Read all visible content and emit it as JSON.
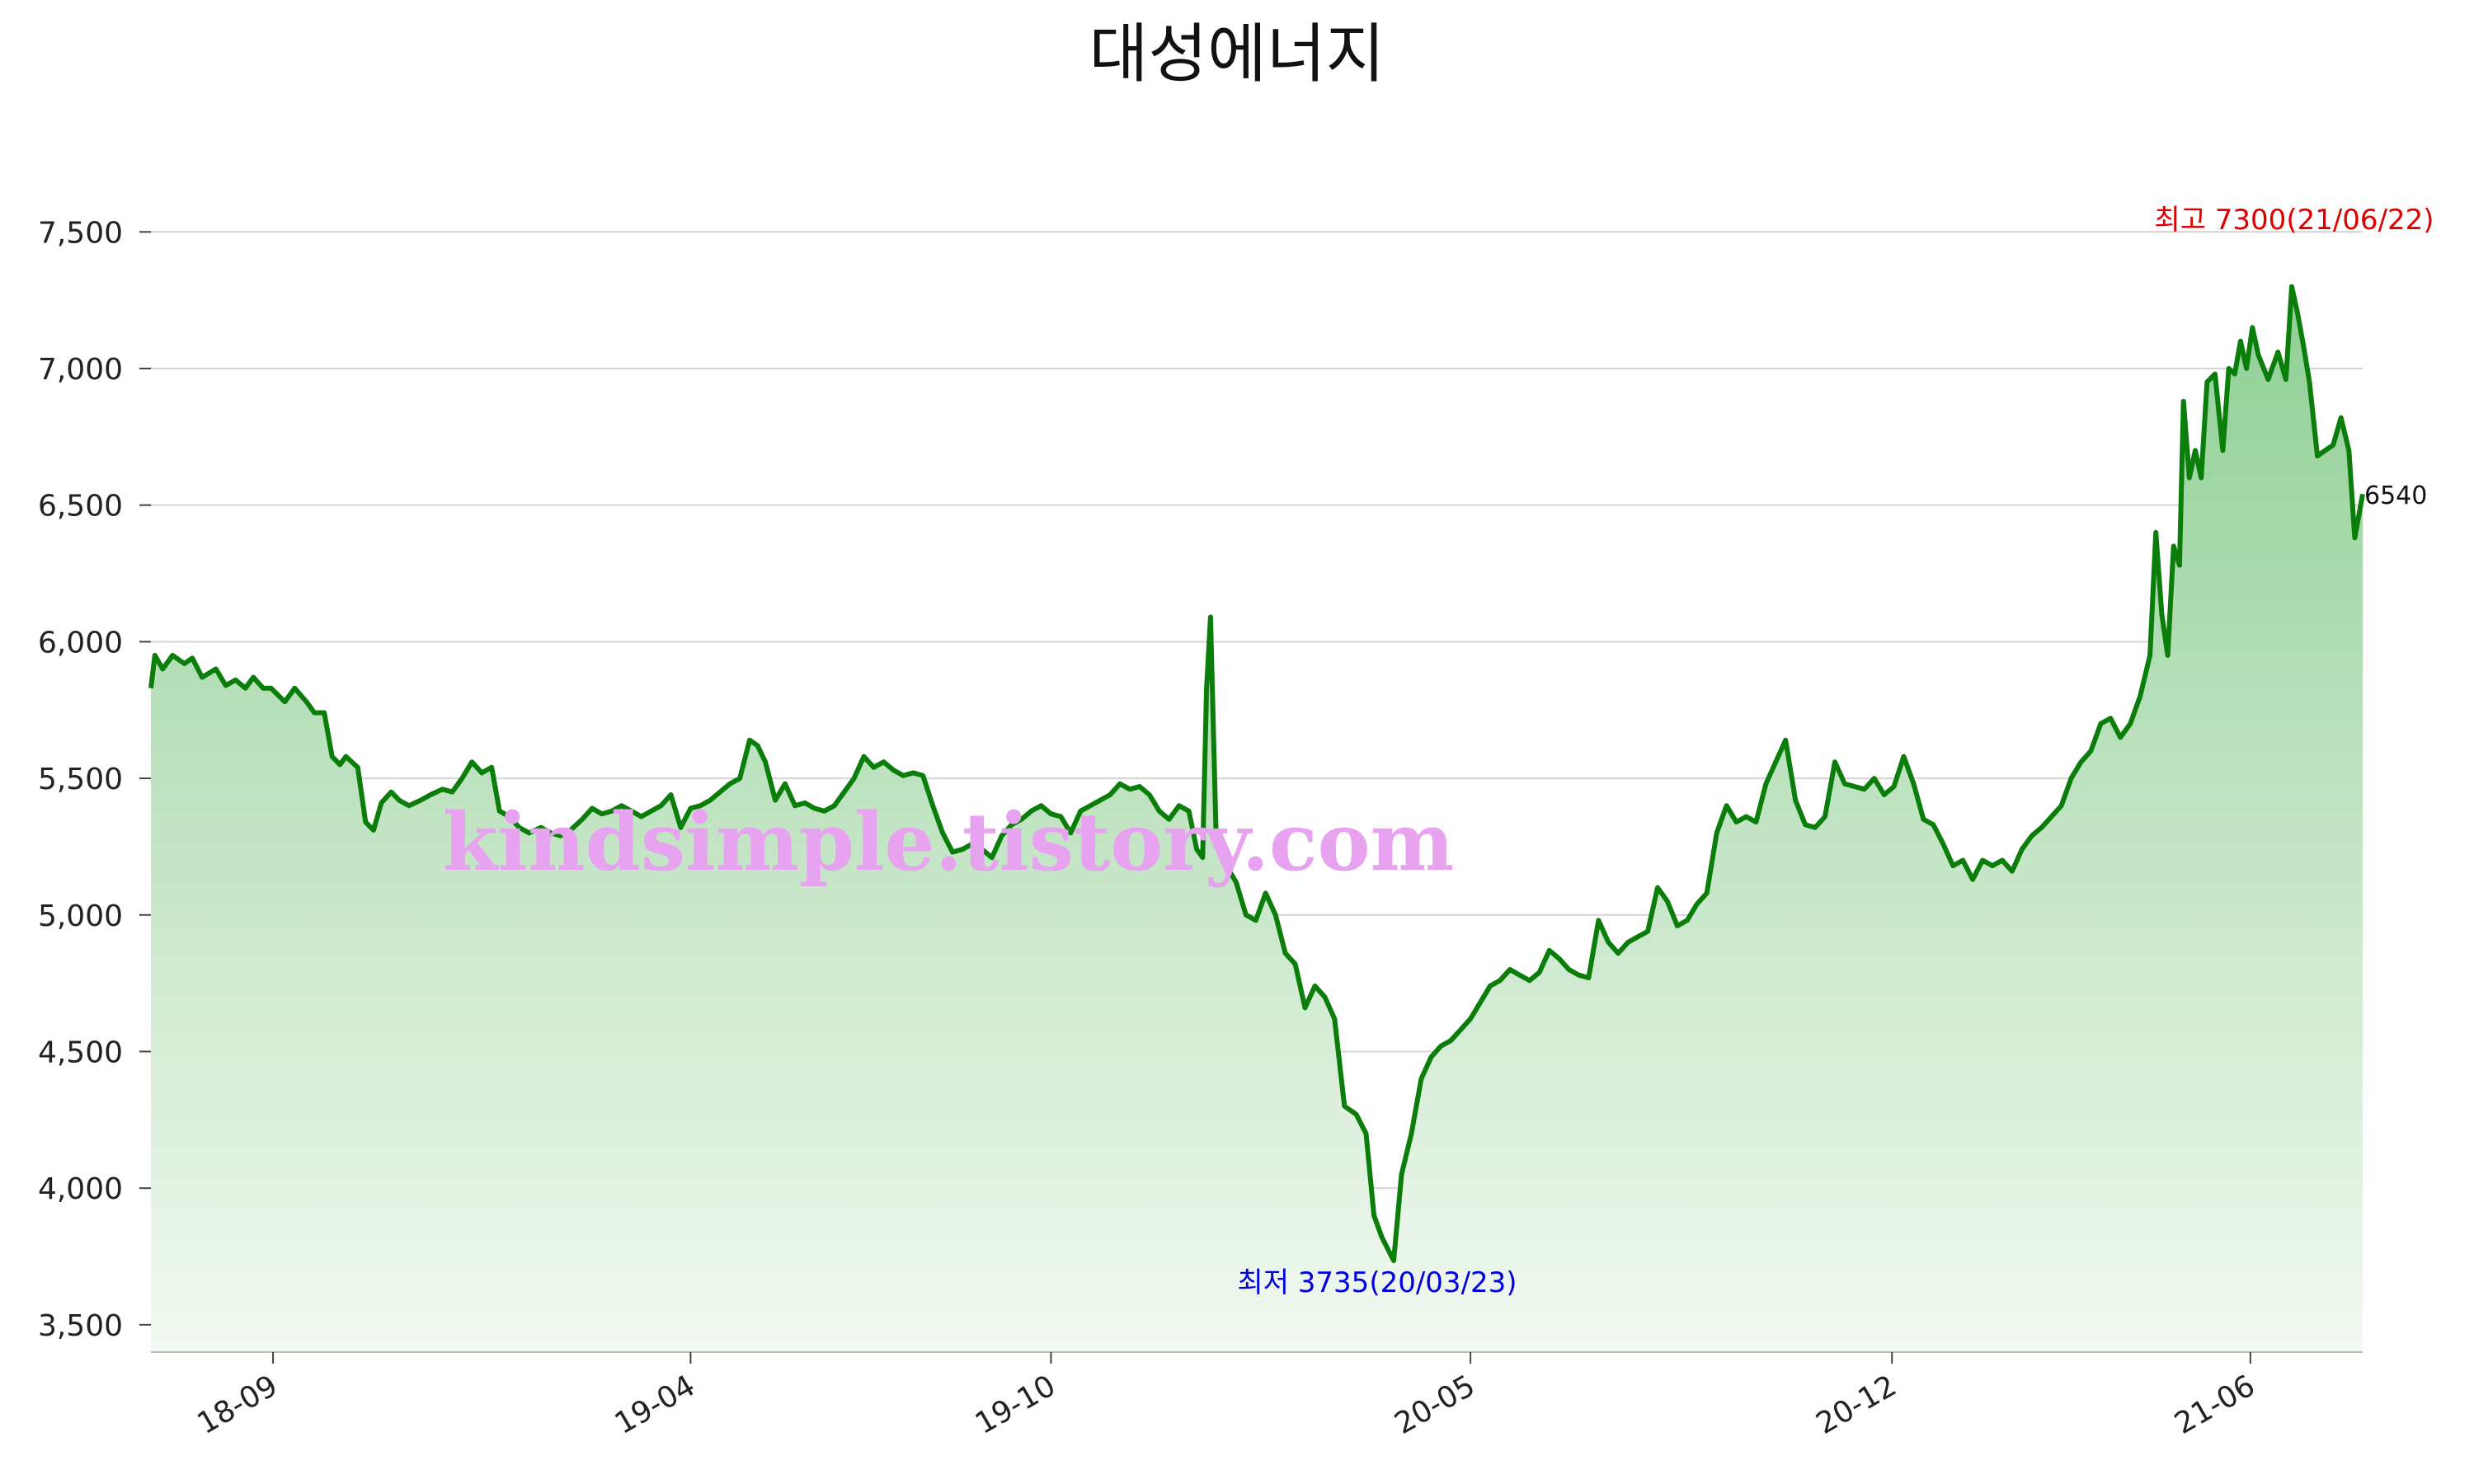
{
  "chart_data": {
    "type": "area",
    "title": "대성에너지",
    "xlabel": "",
    "ylabel": "",
    "x_range": [
      "2018-07-01",
      "2021-07-28"
    ],
    "ylim": [
      3400,
      7700
    ],
    "y_ticks": [
      3500,
      4000,
      4500,
      5000,
      5500,
      6000,
      6500,
      7000,
      7500
    ],
    "y_tick_labels": [
      "3,500",
      "4,000",
      "4,500",
      "5,000",
      "5,500",
      "6,000",
      "6,500",
      "7,000",
      "7,500"
    ],
    "x_ticks": [
      "2018-09-01",
      "2019-04-01",
      "2019-10-01",
      "2020-05-01",
      "2020-12-01",
      "2021-06-01"
    ],
    "x_tick_labels": [
      "18-09",
      "19-04",
      "19-10",
      "20-05",
      "20-12",
      "21-06"
    ],
    "grid": true,
    "line_color": "#0a7d0a",
    "fill_color_top": "#8fcf94",
    "fill_color_bottom": "#f3f9f2",
    "annotations": {
      "max": {
        "label": "최고 7300(21/06/22)",
        "date": "2021-06-22",
        "value": 7300,
        "color": "#e00000"
      },
      "min": {
        "label": "최저 3735(20/03/23)",
        "date": "2020-03-23",
        "value": 3735,
        "color": "#0000e0"
      },
      "last": {
        "label": "6540",
        "date": "2021-07-28",
        "value": 6540
      }
    },
    "watermark": {
      "text": "kindsimple.tistory.com",
      "color": "#e7a3f0"
    },
    "series": [
      {
        "values": [
          [
            "2018-07-01",
            5830
          ],
          [
            "2018-07-03",
            5950
          ],
          [
            "2018-07-07",
            5900
          ],
          [
            "2018-07-12",
            5950
          ],
          [
            "2018-07-18",
            5920
          ],
          [
            "2018-07-22",
            5940
          ],
          [
            "2018-07-27",
            5870
          ],
          [
            "2018-08-03",
            5900
          ],
          [
            "2018-08-08",
            5840
          ],
          [
            "2018-08-13",
            5860
          ],
          [
            "2018-08-18",
            5830
          ],
          [
            "2018-08-22",
            5870
          ],
          [
            "2018-08-27",
            5830
          ],
          [
            "2018-08-31",
            5830
          ],
          [
            "2018-09-07",
            5780
          ],
          [
            "2018-09-12",
            5830
          ],
          [
            "2018-09-18",
            5780
          ],
          [
            "2018-09-22",
            5740
          ],
          [
            "2018-09-27",
            5740
          ],
          [
            "2018-10-01",
            5580
          ],
          [
            "2018-10-05",
            5550
          ],
          [
            "2018-10-08",
            5580
          ],
          [
            "2018-10-14",
            5540
          ],
          [
            "2018-10-18",
            5340
          ],
          [
            "2018-10-22",
            5310
          ],
          [
            "2018-10-26",
            5410
          ],
          [
            "2018-10-31",
            5450
          ],
          [
            "2018-11-04",
            5420
          ],
          [
            "2018-11-09",
            5400
          ],
          [
            "2018-11-15",
            5420
          ],
          [
            "2018-11-20",
            5440
          ],
          [
            "2018-11-26",
            5460
          ],
          [
            "2018-12-01",
            5450
          ],
          [
            "2018-12-06",
            5500
          ],
          [
            "2018-12-11",
            5560
          ],
          [
            "2018-12-16",
            5520
          ],
          [
            "2018-12-21",
            5540
          ],
          [
            "2018-12-25",
            5380
          ],
          [
            "2018-12-30",
            5360
          ],
          [
            "2019-01-04",
            5320
          ],
          [
            "2019-01-09",
            5300
          ],
          [
            "2019-01-15",
            5320
          ],
          [
            "2019-01-20",
            5300
          ],
          [
            "2019-01-25",
            5290
          ],
          [
            "2019-01-30",
            5310
          ],
          [
            "2019-02-05",
            5350
          ],
          [
            "2019-02-10",
            5390
          ],
          [
            "2019-02-15",
            5370
          ],
          [
            "2019-02-20",
            5380
          ],
          [
            "2019-02-25",
            5400
          ],
          [
            "2019-03-02",
            5380
          ],
          [
            "2019-03-07",
            5360
          ],
          [
            "2019-03-12",
            5380
          ],
          [
            "2019-03-17",
            5400
          ],
          [
            "2019-03-22",
            5440
          ],
          [
            "2019-03-27",
            5320
          ],
          [
            "2019-04-01",
            5390
          ],
          [
            "2019-04-06",
            5400
          ],
          [
            "2019-04-11",
            5420
          ],
          [
            "2019-04-16",
            5450
          ],
          [
            "2019-04-21",
            5480
          ],
          [
            "2019-04-26",
            5500
          ],
          [
            "2019-05-01",
            5640
          ],
          [
            "2019-05-05",
            5620
          ],
          [
            "2019-05-09",
            5560
          ],
          [
            "2019-05-14",
            5420
          ],
          [
            "2019-05-19",
            5480
          ],
          [
            "2019-05-24",
            5400
          ],
          [
            "2019-05-29",
            5410
          ],
          [
            "2019-06-03",
            5390
          ],
          [
            "2019-06-08",
            5380
          ],
          [
            "2019-06-13",
            5400
          ],
          [
            "2019-06-18",
            5450
          ],
          [
            "2019-06-23",
            5500
          ],
          [
            "2019-06-28",
            5580
          ],
          [
            "2019-07-03",
            5540
          ],
          [
            "2019-07-08",
            5560
          ],
          [
            "2019-07-13",
            5530
          ],
          [
            "2019-07-18",
            5510
          ],
          [
            "2019-07-23",
            5520
          ],
          [
            "2019-07-28",
            5510
          ],
          [
            "2019-08-02",
            5400
          ],
          [
            "2019-08-07",
            5300
          ],
          [
            "2019-08-12",
            5230
          ],
          [
            "2019-08-17",
            5240
          ],
          [
            "2019-08-22",
            5260
          ],
          [
            "2019-08-27",
            5240
          ],
          [
            "2019-09-01",
            5210
          ],
          [
            "2019-09-06",
            5290
          ],
          [
            "2019-09-11",
            5330
          ],
          [
            "2019-09-16",
            5350
          ],
          [
            "2019-09-21",
            5380
          ],
          [
            "2019-09-26",
            5400
          ],
          [
            "2019-10-01",
            5370
          ],
          [
            "2019-10-06",
            5360
          ],
          [
            "2019-10-11",
            5300
          ],
          [
            "2019-10-16",
            5380
          ],
          [
            "2019-10-21",
            5400
          ],
          [
            "2019-10-26",
            5420
          ],
          [
            "2019-10-31",
            5440
          ],
          [
            "2019-11-05",
            5480
          ],
          [
            "2019-11-10",
            5460
          ],
          [
            "2019-11-15",
            5470
          ],
          [
            "2019-11-20",
            5440
          ],
          [
            "2019-11-25",
            5380
          ],
          [
            "2019-11-30",
            5350
          ],
          [
            "2019-12-05",
            5400
          ],
          [
            "2019-12-10",
            5380
          ],
          [
            "2019-12-14",
            5240
          ],
          [
            "2019-12-17",
            5210
          ],
          [
            "2019-12-19",
            5830
          ],
          [
            "2019-12-21",
            6090
          ],
          [
            "2019-12-24",
            5250
          ],
          [
            "2019-12-29",
            5180
          ],
          [
            "2020-01-03",
            5120
          ],
          [
            "2020-01-08",
            5000
          ],
          [
            "2020-01-13",
            4980
          ],
          [
            "2020-01-18",
            5080
          ],
          [
            "2020-01-23",
            5000
          ],
          [
            "2020-01-28",
            4860
          ],
          [
            "2020-02-02",
            4820
          ],
          [
            "2020-02-07",
            4660
          ],
          [
            "2020-02-12",
            4740
          ],
          [
            "2020-02-17",
            4700
          ],
          [
            "2020-02-22",
            4620
          ],
          [
            "2020-02-27",
            4300
          ],
          [
            "2020-03-04",
            4270
          ],
          [
            "2020-03-09",
            4200
          ],
          [
            "2020-03-13",
            3900
          ],
          [
            "2020-03-17",
            3820
          ],
          [
            "2020-03-23",
            3735
          ],
          [
            "2020-03-27",
            4050
          ],
          [
            "2020-04-01",
            4200
          ],
          [
            "2020-04-06",
            4400
          ],
          [
            "2020-04-11",
            4480
          ],
          [
            "2020-04-16",
            4520
          ],
          [
            "2020-04-21",
            4540
          ],
          [
            "2020-04-26",
            4580
          ],
          [
            "2020-05-01",
            4620
          ],
          [
            "2020-05-06",
            4680
          ],
          [
            "2020-05-11",
            4740
          ],
          [
            "2020-05-16",
            4760
          ],
          [
            "2020-05-21",
            4800
          ],
          [
            "2020-05-26",
            4780
          ],
          [
            "2020-05-31",
            4760
          ],
          [
            "2020-06-05",
            4790
          ],
          [
            "2020-06-10",
            4870
          ],
          [
            "2020-06-15",
            4840
          ],
          [
            "2020-06-20",
            4800
          ],
          [
            "2020-06-25",
            4780
          ],
          [
            "2020-06-30",
            4770
          ],
          [
            "2020-07-05",
            4980
          ],
          [
            "2020-07-10",
            4900
          ],
          [
            "2020-07-15",
            4860
          ],
          [
            "2020-07-20",
            4900
          ],
          [
            "2020-07-25",
            4920
          ],
          [
            "2020-07-30",
            4940
          ],
          [
            "2020-08-04",
            5100
          ],
          [
            "2020-08-09",
            5050
          ],
          [
            "2020-08-14",
            4960
          ],
          [
            "2020-08-19",
            4980
          ],
          [
            "2020-08-24",
            5040
          ],
          [
            "2020-08-29",
            5080
          ],
          [
            "2020-09-03",
            5300
          ],
          [
            "2020-09-08",
            5400
          ],
          [
            "2020-09-13",
            5340
          ],
          [
            "2020-09-18",
            5360
          ],
          [
            "2020-09-23",
            5340
          ],
          [
            "2020-09-28",
            5480
          ],
          [
            "2020-10-03",
            5560
          ],
          [
            "2020-10-08",
            5640
          ],
          [
            "2020-10-13",
            5420
          ],
          [
            "2020-10-18",
            5330
          ],
          [
            "2020-10-23",
            5320
          ],
          [
            "2020-10-28",
            5360
          ],
          [
            "2020-11-02",
            5560
          ],
          [
            "2020-11-07",
            5480
          ],
          [
            "2020-11-12",
            5470
          ],
          [
            "2020-11-17",
            5460
          ],
          [
            "2020-11-22",
            5500
          ],
          [
            "2020-11-27",
            5440
          ],
          [
            "2020-12-02",
            5470
          ],
          [
            "2020-12-07",
            5580
          ],
          [
            "2020-12-12",
            5480
          ],
          [
            "2020-12-17",
            5350
          ],
          [
            "2020-12-22",
            5330
          ],
          [
            "2020-12-27",
            5260
          ],
          [
            "2021-01-01",
            5180
          ],
          [
            "2021-01-06",
            5200
          ],
          [
            "2021-01-11",
            5130
          ],
          [
            "2021-01-16",
            5200
          ],
          [
            "2021-01-21",
            5180
          ],
          [
            "2021-01-26",
            5200
          ],
          [
            "2021-01-31",
            5160
          ],
          [
            "2021-02-05",
            5240
          ],
          [
            "2021-02-10",
            5290
          ],
          [
            "2021-02-15",
            5320
          ],
          [
            "2021-02-20",
            5360
          ],
          [
            "2021-02-25",
            5400
          ],
          [
            "2021-03-02",
            5500
          ],
          [
            "2021-03-07",
            5560
          ],
          [
            "2021-03-12",
            5600
          ],
          [
            "2021-03-17",
            5700
          ],
          [
            "2021-03-22",
            5720
          ],
          [
            "2021-03-27",
            5650
          ],
          [
            "2021-04-01",
            5700
          ],
          [
            "2021-04-06",
            5800
          ],
          [
            "2021-04-11",
            5950
          ],
          [
            "2021-04-14",
            6400
          ],
          [
            "2021-04-17",
            6100
          ],
          [
            "2021-04-20",
            5950
          ],
          [
            "2021-04-23",
            6350
          ],
          [
            "2021-04-26",
            6280
          ],
          [
            "2021-04-28",
            6880
          ],
          [
            "2021-05-01",
            6600
          ],
          [
            "2021-05-04",
            6700
          ],
          [
            "2021-05-07",
            6600
          ],
          [
            "2021-05-10",
            6950
          ],
          [
            "2021-05-14",
            6980
          ],
          [
            "2021-05-18",
            6700
          ],
          [
            "2021-05-21",
            7000
          ],
          [
            "2021-05-24",
            6980
          ],
          [
            "2021-05-27",
            7100
          ],
          [
            "2021-05-30",
            7000
          ],
          [
            "2021-06-02",
            7150
          ],
          [
            "2021-06-05",
            7050
          ],
          [
            "2021-06-10",
            6960
          ],
          [
            "2021-06-15",
            7060
          ],
          [
            "2021-06-19",
            6960
          ],
          [
            "2021-06-22",
            7300
          ],
          [
            "2021-06-25",
            7200
          ],
          [
            "2021-06-28",
            7080
          ],
          [
            "2021-07-01",
            6950
          ],
          [
            "2021-07-05",
            6680
          ],
          [
            "2021-07-09",
            6700
          ],
          [
            "2021-07-13",
            6720
          ],
          [
            "2021-07-17",
            6820
          ],
          [
            "2021-07-21",
            6700
          ],
          [
            "2021-07-24",
            6380
          ],
          [
            "2021-07-28",
            6540
          ]
        ]
      }
    ]
  }
}
